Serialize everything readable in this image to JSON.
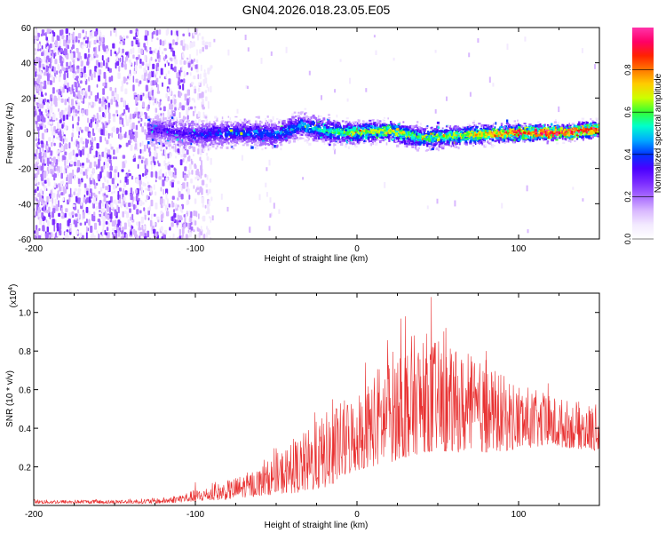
{
  "title": "GN04.2026.018.23.05.E05",
  "colors": {
    "snr_line": "#e83030",
    "frame": "#000000",
    "colormap": [
      "#ffffff",
      "#f3eaff",
      "#d9b8ff",
      "#a86bff",
      "#7a2bff",
      "#4a00ff",
      "#0033ff",
      "#00aaff",
      "#00ffcc",
      "#33ff33",
      "#ccff00",
      "#ffcc00",
      "#ff7700",
      "#ff2200",
      "#ff0066",
      "#ff33aa"
    ]
  },
  "chart_data": [
    {
      "type": "heatmap",
      "name": "spectrogram",
      "title": "GN04.2026.018.23.05.E05",
      "xlabel": "Height of straight line (km)",
      "ylabel": "Frequency (Hz)",
      "xlim": [
        -200,
        150
      ],
      "ylim": [
        -60,
        60
      ],
      "xticks": [
        -200,
        -100,
        0,
        100
      ],
      "xtick_labels": [
        "-200",
        "-100",
        "0",
        "100"
      ],
      "yticks": [
        -60,
        -40,
        -20,
        0,
        20,
        40,
        60
      ],
      "ytick_labels": [
        "-60",
        "-40",
        "-20",
        "0",
        "20",
        "40",
        "60"
      ],
      "colorbar": {
        "label": "Normalized spectral amplitude",
        "range": [
          0.0,
          1.0
        ],
        "ticks": [
          0.0,
          0.2,
          0.4,
          0.6,
          0.8
        ],
        "tick_labels": [
          "0.0",
          "0.2",
          "0.4",
          "0.6",
          "0.8"
        ]
      },
      "ridge": {
        "x": [
          -130,
          -100,
          -75,
          -50,
          -35,
          -20,
          0,
          20,
          40,
          55,
          75,
          100,
          125,
          150
        ],
        "y": [
          3,
          0,
          1,
          0,
          5,
          2,
          1,
          2,
          -2,
          -1,
          0,
          1,
          1,
          3
        ],
        "peak_amplitude": [
          0.2,
          0.3,
          0.35,
          0.35,
          0.4,
          0.5,
          0.6,
          0.65,
          0.55,
          0.6,
          0.7,
          0.85,
          0.9,
          0.85
        ]
      }
    },
    {
      "type": "line",
      "name": "snr",
      "xlabel": "Height of straight line (km)",
      "ylabel": "SNR (10 * v/v)",
      "y_scale_label": "(x10",
      "y_scale_exp": "4",
      "y_scale_close": ")",
      "xlim": [
        -200,
        150
      ],
      "ylim": [
        0,
        1.1
      ],
      "xticks": [
        -200,
        -100,
        0,
        100
      ],
      "xtick_labels": [
        "-200",
        "-100",
        "0",
        "100"
      ],
      "yticks": [
        0.2,
        0.4,
        0.6,
        0.8,
        1.0
      ],
      "ytick_labels": [
        "0.2",
        "0.4",
        "0.6",
        "0.8",
        "1.0"
      ],
      "envelope": {
        "x": [
          -200,
          -150,
          -120,
          -100,
          -80,
          -60,
          -45,
          -30,
          -20,
          0,
          20,
          30,
          45,
          55,
          70,
          90,
          110,
          130,
          150
        ],
        "lower": [
          0.01,
          0.01,
          0.01,
          0.02,
          0.03,
          0.05,
          0.06,
          0.07,
          0.09,
          0.18,
          0.22,
          0.25,
          0.28,
          0.28,
          0.27,
          0.28,
          0.3,
          0.3,
          0.28
        ],
        "upper": [
          0.03,
          0.03,
          0.04,
          0.08,
          0.13,
          0.2,
          0.3,
          0.4,
          0.48,
          0.6,
          0.8,
          0.88,
          0.9,
          0.82,
          0.78,
          0.68,
          0.6,
          0.55,
          0.52
        ]
      },
      "peaks": [
        {
          "x": 46,
          "y": 1.08
        },
        {
          "x": 30,
          "y": 0.98
        },
        {
          "x": 55,
          "y": 0.92
        },
        {
          "x": 80,
          "y": 0.8
        },
        {
          "x": -15,
          "y": 0.55
        },
        {
          "x": -100,
          "y": 0.12
        }
      ]
    }
  ]
}
